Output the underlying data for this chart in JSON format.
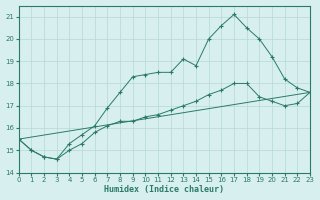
{
  "x_all": [
    0,
    1,
    2,
    3,
    4,
    5,
    6,
    7,
    8,
    9,
    10,
    11,
    12,
    13,
    14,
    15,
    16,
    17,
    18,
    19,
    20,
    21,
    22,
    23
  ],
  "line1_x": [
    0,
    1,
    2,
    3,
    4,
    5,
    6,
    7,
    8,
    9,
    10,
    11,
    12,
    13,
    14,
    15,
    16,
    17,
    18,
    19,
    20,
    21,
    22,
    23
  ],
  "line1_y": [
    15.5,
    15.0,
    14.7,
    14.6,
    15.3,
    15.7,
    16.1,
    16.9,
    17.6,
    18.3,
    18.4,
    18.5,
    18.5,
    19.1,
    18.8,
    20.0,
    20.6,
    21.1,
    20.5,
    20.0,
    19.2,
    18.2,
    17.8,
    17.6
  ],
  "line2_x": [
    0,
    1,
    2,
    3,
    4,
    5,
    6,
    7,
    8,
    9,
    10,
    11,
    12,
    13,
    14,
    15,
    16,
    17,
    18,
    19,
    20,
    21,
    22,
    23
  ],
  "line2_y": [
    15.5,
    15.0,
    14.7,
    14.6,
    15.0,
    15.3,
    15.8,
    16.1,
    16.3,
    16.3,
    16.5,
    16.6,
    16.8,
    17.0,
    17.2,
    17.5,
    17.7,
    18.0,
    18.0,
    17.4,
    17.2,
    17.0,
    17.1,
    17.6
  ],
  "line3_x": [
    0,
    23
  ],
  "line3_y": [
    15.5,
    17.6
  ],
  "color": "#2a7a6a",
  "bg_color": "#d8efef",
  "grid_color": "#b8d8d8",
  "xlabel": "Humidex (Indice chaleur)",
  "xlim": [
    0,
    23
  ],
  "ylim": [
    14.0,
    21.5
  ],
  "yticks": [
    14,
    15,
    16,
    17,
    18,
    19,
    20,
    21
  ],
  "xticks": [
    0,
    1,
    2,
    3,
    4,
    5,
    6,
    7,
    8,
    9,
    10,
    11,
    12,
    13,
    14,
    15,
    16,
    17,
    18,
    19,
    20,
    21,
    22,
    23
  ]
}
